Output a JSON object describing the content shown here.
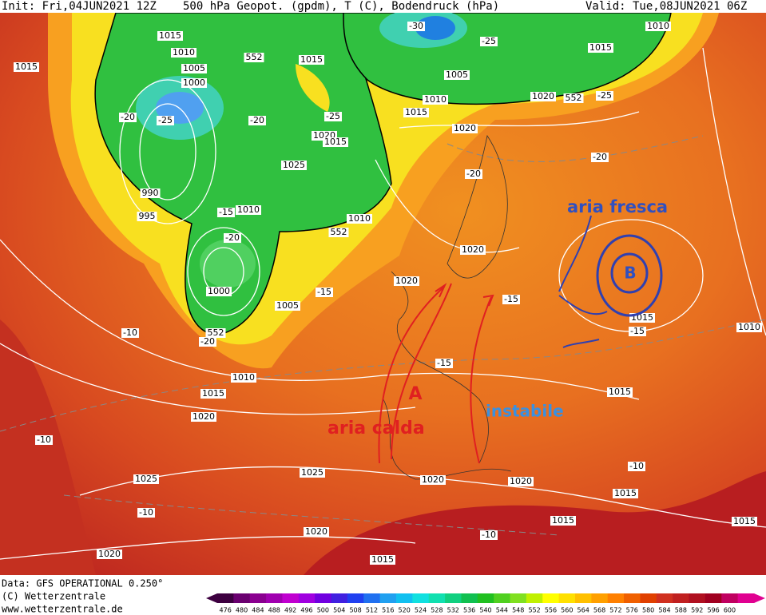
{
  "header": {
    "init": "Init: Fri,04JUN2021 12Z",
    "field": "500 hPa Geopot. (gpdm), T (C), Bodendruck (hPa)",
    "valid": "Valid: Tue,08JUN2021 06Z"
  },
  "footer": {
    "data": "Data: GFS OPERATIONAL 0.250°",
    "copyright": "(C) Wetterzentrale",
    "url": "www.wetterzentrale.de"
  },
  "annotations": {
    "cool": "aria fresca",
    "low": "B",
    "high": "A",
    "warm": "aria calda",
    "unstable": "instabile"
  },
  "map_labels": [
    "1015",
    "1010",
    "1005",
    "1000",
    "1015",
    "-20",
    "-25",
    "-20",
    "552",
    "1015",
    "-25",
    "1020",
    "1015",
    "1025",
    "990",
    "995",
    "-15",
    "1010",
    "-20",
    "1010",
    "552",
    "1000",
    "1005",
    "-15",
    "552",
    "-20",
    "-10",
    "1010",
    "1015",
    "1020",
    "-10",
    "1025",
    "-10",
    "1020",
    "1025",
    "1020",
    "1015",
    "1020",
    "1020",
    "-10",
    "1015",
    "1015",
    "-10",
    "1015",
    "-15",
    "-15",
    "1020",
    "1020",
    "-20",
    "1020",
    "1015",
    "1010",
    "1005",
    "-30",
    "-25",
    "1015",
    "1010",
    "1020",
    "552",
    "-25",
    "-20",
    "1015",
    "-15",
    "1015",
    "1010"
  ],
  "scale": {
    "values": [
      476,
      480,
      484,
      488,
      492,
      496,
      500,
      504,
      508,
      512,
      516,
      520,
      524,
      528,
      532,
      536,
      540,
      544,
      548,
      552,
      556,
      560,
      564,
      568,
      572,
      576,
      580,
      584,
      588,
      592,
      596,
      600
    ],
    "colors": [
      "#3d0040",
      "#6a0070",
      "#8a0090",
      "#a000b0",
      "#c000d0",
      "#a000e0",
      "#7000e0",
      "#4020e0",
      "#2040f0",
      "#2070f0",
      "#20a0f0",
      "#10c0f0",
      "#10e0e0",
      "#10e0b0",
      "#10d080",
      "#10c050",
      "#20c020",
      "#50d020",
      "#80e020",
      "#c0f000",
      "#ffff00",
      "#ffe000",
      "#ffc000",
      "#ffa000",
      "#ff8000",
      "#f06000",
      "#e04000",
      "#d03020",
      "#c02020",
      "#b01020",
      "#a00020",
      "#c00060",
      "#e00090"
    ]
  }
}
